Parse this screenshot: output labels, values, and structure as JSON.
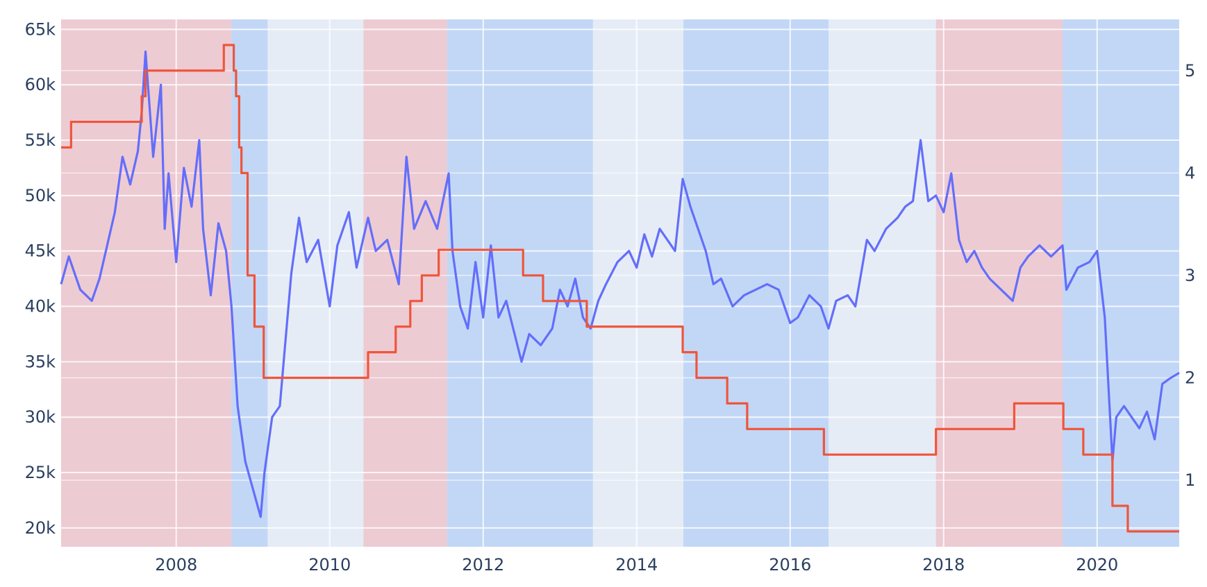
{
  "chart_data": {
    "type": "line",
    "title": "",
    "xlabel": "",
    "ylabel": "",
    "x_range": [
      2006.5,
      2021.07
    ],
    "y_range": [
      18300,
      65900
    ],
    "y2_range": [
      0.35,
      5.5
    ],
    "x_ticks": [
      {
        "value": 2008,
        "label": "2008"
      },
      {
        "value": 2010,
        "label": "2010"
      },
      {
        "value": 2012,
        "label": "2012"
      },
      {
        "value": 2014,
        "label": "2014"
      },
      {
        "value": 2016,
        "label": "2016"
      },
      {
        "value": 2018,
        "label": "2018"
      },
      {
        "value": 2020,
        "label": "2020"
      }
    ],
    "y_ticks": [
      {
        "value": 20000,
        "label": "20k"
      },
      {
        "value": 25000,
        "label": "25k"
      },
      {
        "value": 30000,
        "label": "30k"
      },
      {
        "value": 35000,
        "label": "35k"
      },
      {
        "value": 40000,
        "label": "40k"
      },
      {
        "value": 45000,
        "label": "45k"
      },
      {
        "value": 50000,
        "label": "50k"
      },
      {
        "value": 55000,
        "label": "55k"
      },
      {
        "value": 60000,
        "label": "60k"
      },
      {
        "value": 65000,
        "label": "65k"
      }
    ],
    "y2_ticks": [
      {
        "value": 1,
        "label": "1"
      },
      {
        "value": 2,
        "label": "2"
      },
      {
        "value": 3,
        "label": "3"
      },
      {
        "value": 4,
        "label": "4"
      },
      {
        "value": 5,
        "label": "5"
      }
    ],
    "grid": true,
    "background_color": "#e5ecf6",
    "bands": [
      {
        "start": 2006.5,
        "end": 2008.72,
        "color": "#f2b6bd",
        "opacity": 0.6
      },
      {
        "start": 2008.72,
        "end": 2009.19,
        "color": "#b4cff7",
        "opacity": 0.7
      },
      {
        "start": 2010.44,
        "end": 2011.53,
        "color": "#f2b6bd",
        "opacity": 0.6
      },
      {
        "start": 2011.53,
        "end": 2013.43,
        "color": "#b4cff7",
        "opacity": 0.7
      },
      {
        "start": 2014.61,
        "end": 2016.5,
        "color": "#b4cff7",
        "opacity": 0.7
      },
      {
        "start": 2017.9,
        "end": 2019.55,
        "color": "#f2b6bd",
        "opacity": 0.6
      },
      {
        "start": 2019.55,
        "end": 2021.07,
        "color": "#b4cff7",
        "opacity": 0.7
      }
    ],
    "series": [
      {
        "axis": "y",
        "line_type": "line",
        "color": "#636efa",
        "x": [
          2006.5,
          2006.6,
          2006.75,
          2006.9,
          2007.0,
          2007.1,
          2007.2,
          2007.3,
          2007.4,
          2007.5,
          2007.55,
          2007.6,
          2007.7,
          2007.8,
          2007.85,
          2007.9,
          2008.0,
          2008.1,
          2008.2,
          2008.3,
          2008.35,
          2008.45,
          2008.55,
          2008.65,
          2008.72,
          2008.8,
          2008.85,
          2008.9,
          2009.0,
          2009.1,
          2009.15,
          2009.25,
          2009.35,
          2009.5,
          2009.6,
          2009.7,
          2009.85,
          2010.0,
          2010.1,
          2010.25,
          2010.35,
          2010.5,
          2010.6,
          2010.75,
          2010.9,
          2011.0,
          2011.1,
          2011.25,
          2011.4,
          2011.55,
          2011.6,
          2011.7,
          2011.8,
          2011.9,
          2012.0,
          2012.1,
          2012.2,
          2012.3,
          2012.5,
          2012.6,
          2012.75,
          2012.9,
          2013.0,
          2013.1,
          2013.2,
          2013.3,
          2013.4,
          2013.5,
          2013.6,
          2013.75,
          2013.9,
          2014.0,
          2014.1,
          2014.2,
          2014.3,
          2014.5,
          2014.6,
          2014.7,
          2014.8,
          2014.9,
          2015.0,
          2015.1,
          2015.25,
          2015.4,
          2015.55,
          2015.7,
          2015.85,
          2016.0,
          2016.1,
          2016.25,
          2016.4,
          2016.5,
          2016.6,
          2016.75,
          2016.85,
          2017.0,
          2017.1,
          2017.25,
          2017.4,
          2017.5,
          2017.6,
          2017.7,
          2017.8,
          2017.9,
          2018.0,
          2018.1,
          2018.2,
          2018.3,
          2018.4,
          2018.5,
          2018.6,
          2018.75,
          2018.9,
          2019.0,
          2019.1,
          2019.25,
          2019.4,
          2019.55,
          2019.6,
          2019.75,
          2019.9,
          2020.0,
          2020.1,
          2020.2,
          2020.25,
          2020.35,
          2020.45,
          2020.55,
          2020.65,
          2020.75,
          2020.85,
          2020.95,
          2021.07
        ],
        "y": [
          42000,
          44500,
          41500,
          40500,
          42500,
          45500,
          48500,
          53500,
          51000,
          54000,
          57500,
          63000,
          53500,
          60000,
          47000,
          52000,
          44000,
          52500,
          49000,
          55000,
          47000,
          41000,
          47500,
          45000,
          40000,
          31000,
          28500,
          26000,
          23500,
          21000,
          25000,
          30000,
          31000,
          43000,
          48000,
          44000,
          46000,
          40000,
          45500,
          48500,
          43500,
          48000,
          45000,
          46000,
          42000,
          53500,
          47000,
          49500,
          47000,
          52000,
          45000,
          40000,
          38000,
          44000,
          39000,
          45500,
          39000,
          40500,
          35000,
          37500,
          36500,
          38000,
          41500,
          40000,
          42500,
          39000,
          38000,
          40500,
          42000,
          44000,
          45000,
          43500,
          46500,
          44500,
          47000,
          45000,
          51500,
          49000,
          47000,
          45000,
          42000,
          42500,
          40000,
          41000,
          41500,
          42000,
          41500,
          38500,
          39000,
          41000,
          40000,
          38000,
          40500,
          41000,
          40000,
          46000,
          45000,
          47000,
          48000,
          49000,
          49500,
          55000,
          49500,
          50000,
          48500,
          52000,
          46000,
          44000,
          45000,
          43500,
          42500,
          41500,
          40500,
          43500,
          44500,
          45500,
          44500,
          45500,
          41500,
          43500,
          44000,
          45000,
          39000,
          26000,
          30000,
          31000,
          30000,
          29000,
          30500,
          28000,
          33000,
          33500,
          34000
        ]
      },
      {
        "axis": "y2",
        "line_type": "step",
        "color": "#ef553b",
        "x": [
          2006.5,
          2006.63,
          2007.55,
          2007.6,
          2007.65,
          2008.62,
          2008.75,
          2008.78,
          2008.82,
          2008.85,
          2008.88,
          2008.93,
          2009.02,
          2009.14,
          2010.5,
          2010.86,
          2011.05,
          2011.2,
          2011.42,
          2012.52,
          2012.78,
          2013.35,
          2014.6,
          2014.78,
          2015.18,
          2015.44,
          2016.44,
          2017.9,
          2018.92,
          2019.56,
          2019.82,
          2020.2,
          2020.4,
          2021.07
        ],
        "y": [
          4.25,
          4.5,
          4.75,
          5.0,
          5.0,
          5.25,
          5.0,
          4.75,
          4.25,
          4.0,
          4.0,
          3.0,
          2.5,
          2.0,
          2.25,
          2.5,
          2.75,
          3.0,
          3.25,
          3.0,
          2.75,
          2.5,
          2.25,
          2.0,
          1.75,
          1.5,
          1.25,
          1.5,
          1.75,
          1.5,
          1.25,
          0.75,
          0.5,
          0.5
        ]
      }
    ]
  }
}
